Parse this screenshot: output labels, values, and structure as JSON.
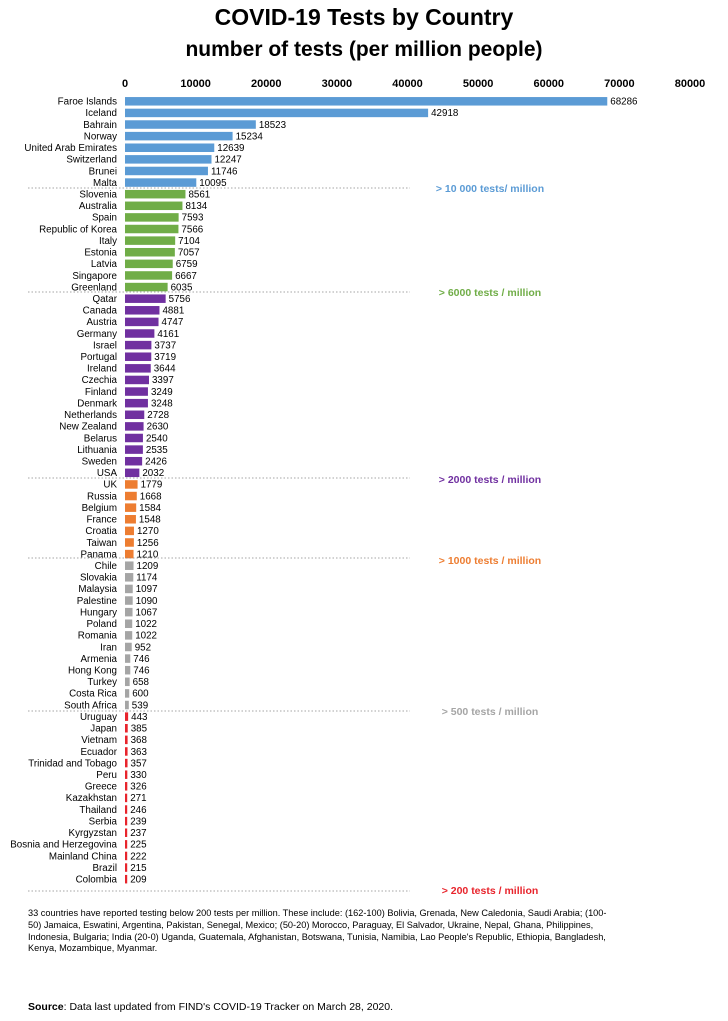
{
  "title": "COVID-19 Tests by Country",
  "subtitle": "number of tests (per million people)",
  "chart_data": {
    "type": "bar",
    "orientation": "horizontal",
    "title": "COVID-19 Tests by Country",
    "subtitle": "number of tests (per million people)",
    "xlim": [
      0,
      80000
    ],
    "x_ticks": [
      0,
      10000,
      20000,
      30000,
      40000,
      50000,
      60000,
      70000,
      80000
    ],
    "x_tick_labels": [
      "0",
      "10000",
      "20000",
      "30000",
      "40000",
      "50000",
      "60000",
      "70000",
      "80000"
    ],
    "groups": [
      {
        "label": "> 10 000 tests/ million",
        "color": "#5b9bd5",
        "categories": [
          "Faroe Islands",
          "Iceland",
          "Bahrain",
          "Norway",
          "United Arab Emirates",
          "Switzerland",
          "Brunei",
          "Malta"
        ],
        "values": [
          68286,
          42918,
          18523,
          15234,
          12639,
          12247,
          11746,
          10095
        ]
      },
      {
        "label": "> 6000 tests / million",
        "color": "#70ad47",
        "categories": [
          "Slovenia",
          "Australia",
          "Spain",
          "Republic of Korea",
          "Italy",
          "Estonia",
          "Latvia",
          "Singapore",
          "Greenland"
        ],
        "values": [
          8561,
          8134,
          7593,
          7566,
          7104,
          7057,
          6759,
          6667,
          6035
        ]
      },
      {
        "label": "> 2000 tests / million",
        "color": "#7030a0",
        "categories": [
          "Qatar",
          "Canada",
          "Austria",
          "Germany",
          "Israel",
          "Portugal",
          "Ireland",
          "Czechia",
          "Finland",
          "Denmark",
          "Netherlands",
          "New Zealand",
          "Belarus",
          "Lithuania",
          "Sweden",
          "USA"
        ],
        "values": [
          5756,
          4881,
          4747,
          4161,
          3737,
          3719,
          3644,
          3397,
          3249,
          3248,
          2728,
          2630,
          2540,
          2535,
          2426,
          2032
        ]
      },
      {
        "label": "> 1000 tests / million",
        "color": "#ed7d31",
        "categories": [
          "UK",
          "Russia",
          "Belgium",
          "France",
          "Croatia",
          "Taiwan",
          "Panama"
        ],
        "values": [
          1779,
          1668,
          1584,
          1548,
          1270,
          1256,
          1210
        ]
      },
      {
        "label": "> 500 tests / million",
        "color": "#a5a5a5",
        "categories": [
          "Chile",
          "Slovakia",
          "Malaysia",
          "Palestine",
          "Hungary",
          "Poland",
          "Romania",
          "Iran",
          "Armenia",
          "Hong Kong",
          "Turkey",
          "Costa Rica",
          "South Africa"
        ],
        "values": [
          1209,
          1174,
          1097,
          1090,
          1067,
          1022,
          1022,
          952,
          746,
          746,
          658,
          600,
          539
        ]
      },
      {
        "label": "> 200 tests / million",
        "color": "#e8242c",
        "categories": [
          "Uruguay",
          "Japan",
          "Vietnam",
          "Ecuador",
          "Trinidad and Tobago",
          "Peru",
          "Greece",
          "Kazakhstan",
          "Thailand",
          "Serbia",
          "Kyrgyzstan",
          "Bosnia and Herzegovina",
          "Mainland China",
          "Brazil",
          "Colombia"
        ],
        "values": [
          443,
          385,
          368,
          363,
          357,
          330,
          326,
          271,
          246,
          239,
          237,
          225,
          222,
          215,
          209
        ]
      }
    ]
  },
  "footnote": "33 countries have reported testing below 200 tests per million. These include: (162-100) Bolivia, Grenada, New Caledonia, Saudi Arabia; (100-50) Jamaica, Eswatini, Argentina, Pakistan, Senegal, Mexico; (50-20) Morocco, Paraguay, El Salvador, Ukraine, Nepal, Ghana, Philippines, Indonesia, Bulgaria; India (20-0) Uganda, Guatemala, Afghanistan, Botswana, Tunisia, Namibia, Lao People's Republic, Ethiopia, Bangladesh, Kenya, Mozambique, Myanmar.",
  "source": {
    "label": "Source",
    "text": ": Data last updated from FIND's COVID-19 Tracker on March 28, 2020."
  }
}
